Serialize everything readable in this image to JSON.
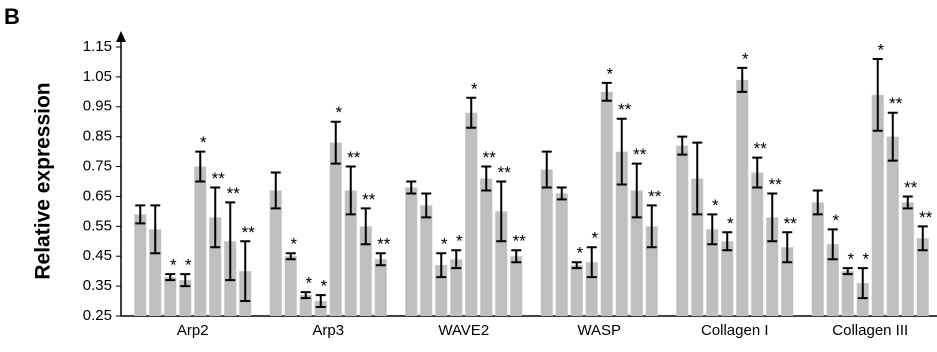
{
  "chart_data": {
    "type": "grouped-bar-error",
    "panel_label": "B",
    "y_label": "Relative expression",
    "categories": [
      "Arp2",
      "Arp3",
      "WAVE2",
      "WASP",
      "Collagen I",
      "Collagen III"
    ],
    "values": [
      [
        0.59,
        0.54,
        0.38,
        0.37,
        0.75,
        0.58,
        0.5,
        0.4
      ],
      [
        0.67,
        0.45,
        0.32,
        0.3,
        0.83,
        0.67,
        0.55,
        0.44
      ],
      [
        0.68,
        0.62,
        0.42,
        0.44,
        0.93,
        0.71,
        0.6,
        0.45
      ],
      [
        0.74,
        0.66,
        0.42,
        0.43,
        1.0,
        0.8,
        0.67,
        0.55
      ],
      [
        0.82,
        0.71,
        0.54,
        0.5,
        1.04,
        0.73,
        0.58,
        0.48
      ],
      [
        0.63,
        0.49,
        0.4,
        0.36,
        0.99,
        0.85,
        0.63,
        0.51
      ]
    ],
    "errors": [
      [
        0.03,
        0.08,
        0.01,
        0.02,
        0.05,
        0.1,
        0.13,
        0.1
      ],
      [
        0.06,
        0.01,
        0.01,
        0.02,
        0.07,
        0.08,
        0.06,
        0.02
      ],
      [
        0.02,
        0.04,
        0.04,
        0.03,
        0.05,
        0.04,
        0.1,
        0.02
      ],
      [
        0.06,
        0.02,
        0.01,
        0.05,
        0.03,
        0.11,
        0.09,
        0.07
      ],
      [
        0.03,
        0.12,
        0.05,
        0.03,
        0.04,
        0.05,
        0.08,
        0.05
      ],
      [
        0.04,
        0.05,
        0.01,
        0.05,
        0.12,
        0.08,
        0.02,
        0.04
      ]
    ],
    "value_labels": [
      [
        null,
        null,
        "*",
        "*",
        "*",
        "**",
        "**",
        "**"
      ],
      [
        null,
        "*",
        "*",
        "*",
        "*",
        "**",
        "**",
        "**"
      ],
      [
        null,
        null,
        "*",
        "*",
        "*",
        "**",
        "**",
        "**"
      ],
      [
        null,
        null,
        "*",
        "*",
        "*",
        "**",
        "**",
        "**"
      ],
      [
        null,
        null,
        "*",
        "*",
        "*",
        "**",
        "**",
        "**"
      ],
      [
        null,
        "*",
        "*",
        "*",
        "*",
        "**",
        "**",
        "**"
      ]
    ],
    "color": "#bfbfbf",
    "ylim": [
      0.25,
      1.15
    ],
    "yticks": [
      0.25,
      0.35,
      0.45,
      0.55,
      0.65,
      0.75,
      0.85,
      0.95,
      1.05,
      1.15
    ]
  }
}
